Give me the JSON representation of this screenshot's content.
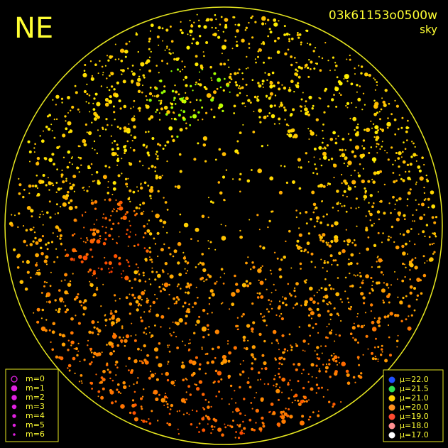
{
  "header": {
    "label": "NE",
    "image_id": "03k61153o0500w",
    "mode": "sky"
  },
  "legend_magnitude": [
    "m=0",
    "m=1",
    "m=2",
    "m=3",
    "m=4",
    "m=5",
    "m=6"
  ],
  "legend_brightness": [
    "μ=22.0",
    "μ=21.5",
    "μ=21.0",
    "μ=20.0",
    "μ=19.0",
    "μ=18.0",
    "μ=17.0"
  ]
}
